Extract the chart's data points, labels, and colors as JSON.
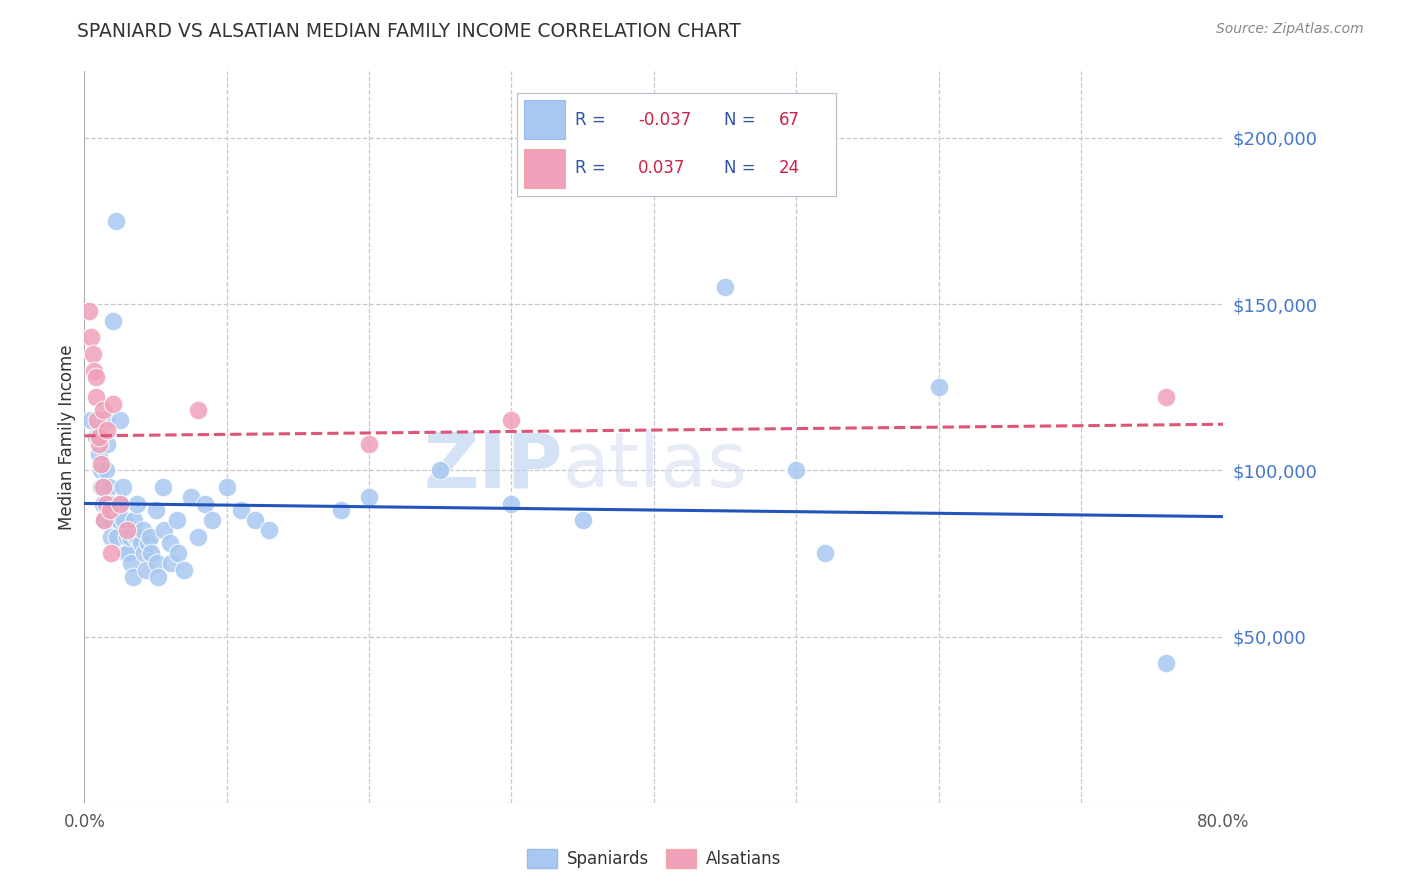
{
  "title": "SPANIARD VS ALSATIAN MEDIAN FAMILY INCOME CORRELATION CHART",
  "source": "Source: ZipAtlas.com",
  "ylabel": "Median Family Income",
  "xlim": [
    0.0,
    0.8
  ],
  "ylim": [
    0,
    220000
  ],
  "yticks": [
    0,
    50000,
    100000,
    150000,
    200000
  ],
  "ytick_labels": [
    "",
    "$50,000",
    "$100,000",
    "$150,000",
    "$200,000"
  ],
  "xticks": [
    0.0,
    0.1,
    0.2,
    0.3,
    0.4,
    0.5,
    0.6,
    0.7,
    0.8
  ],
  "xtick_labels": [
    "0.0%",
    "",
    "",
    "",
    "",
    "",
    "",
    "",
    "80.0%"
  ],
  "grid_color": "#c8c8d0",
  "background_color": "#ffffff",
  "spaniard_color": "#a8c8f0",
  "alsatian_color": "#f0a0b8",
  "spaniard_line_color": "#2255bb",
  "alsatian_line_color": "#dd5577",
  "spaniard_r": -0.037,
  "alsatian_r": 0.037,
  "title_color": "#333333",
  "ytick_color": "#4477cc",
  "source_color": "#888888",
  "legend_text_color": "#3355aa",
  "spaniard_points": [
    [
      0.005,
      115000
    ],
    [
      0.008,
      110000
    ],
    [
      0.01,
      105000
    ],
    [
      0.012,
      100000
    ],
    [
      0.012,
      95000
    ],
    [
      0.013,
      90000
    ],
    [
      0.014,
      85000
    ],
    [
      0.015,
      115000
    ],
    [
      0.015,
      100000
    ],
    [
      0.016,
      108000
    ],
    [
      0.017,
      95000
    ],
    [
      0.018,
      85000
    ],
    [
      0.018,
      90000
    ],
    [
      0.019,
      80000
    ],
    [
      0.02,
      145000
    ],
    [
      0.022,
      175000
    ],
    [
      0.023,
      80000
    ],
    [
      0.024,
      85000
    ],
    [
      0.025,
      115000
    ],
    [
      0.026,
      90000
    ],
    [
      0.027,
      95000
    ],
    [
      0.028,
      85000
    ],
    [
      0.029,
      75000
    ],
    [
      0.03,
      80000
    ],
    [
      0.031,
      75000
    ],
    [
      0.032,
      80000
    ],
    [
      0.033,
      72000
    ],
    [
      0.034,
      68000
    ],
    [
      0.035,
      85000
    ],
    [
      0.036,
      80000
    ],
    [
      0.037,
      90000
    ],
    [
      0.038,
      80000
    ],
    [
      0.04,
      78000
    ],
    [
      0.041,
      82000
    ],
    [
      0.042,
      75000
    ],
    [
      0.043,
      70000
    ],
    [
      0.045,
      78000
    ],
    [
      0.046,
      80000
    ],
    [
      0.047,
      75000
    ],
    [
      0.05,
      88000
    ],
    [
      0.051,
      72000
    ],
    [
      0.052,
      68000
    ],
    [
      0.055,
      95000
    ],
    [
      0.056,
      82000
    ],
    [
      0.06,
      78000
    ],
    [
      0.061,
      72000
    ],
    [
      0.065,
      85000
    ],
    [
      0.066,
      75000
    ],
    [
      0.07,
      70000
    ],
    [
      0.075,
      92000
    ],
    [
      0.08,
      80000
    ],
    [
      0.085,
      90000
    ],
    [
      0.09,
      85000
    ],
    [
      0.1,
      95000
    ],
    [
      0.11,
      88000
    ],
    [
      0.12,
      85000
    ],
    [
      0.13,
      82000
    ],
    [
      0.18,
      88000
    ],
    [
      0.2,
      92000
    ],
    [
      0.25,
      100000
    ],
    [
      0.3,
      90000
    ],
    [
      0.35,
      85000
    ],
    [
      0.45,
      155000
    ],
    [
      0.5,
      100000
    ],
    [
      0.52,
      75000
    ],
    [
      0.6,
      125000
    ],
    [
      0.76,
      42000
    ]
  ],
  "alsatian_points": [
    [
      0.003,
      148000
    ],
    [
      0.005,
      140000
    ],
    [
      0.006,
      135000
    ],
    [
      0.007,
      130000
    ],
    [
      0.008,
      128000
    ],
    [
      0.008,
      122000
    ],
    [
      0.009,
      115000
    ],
    [
      0.01,
      108000
    ],
    [
      0.01,
      110000
    ],
    [
      0.012,
      102000
    ],
    [
      0.013,
      118000
    ],
    [
      0.013,
      95000
    ],
    [
      0.014,
      85000
    ],
    [
      0.015,
      90000
    ],
    [
      0.016,
      112000
    ],
    [
      0.018,
      88000
    ],
    [
      0.019,
      75000
    ],
    [
      0.02,
      120000
    ],
    [
      0.025,
      90000
    ],
    [
      0.03,
      82000
    ],
    [
      0.08,
      118000
    ],
    [
      0.2,
      108000
    ],
    [
      0.3,
      115000
    ],
    [
      0.76,
      122000
    ]
  ]
}
